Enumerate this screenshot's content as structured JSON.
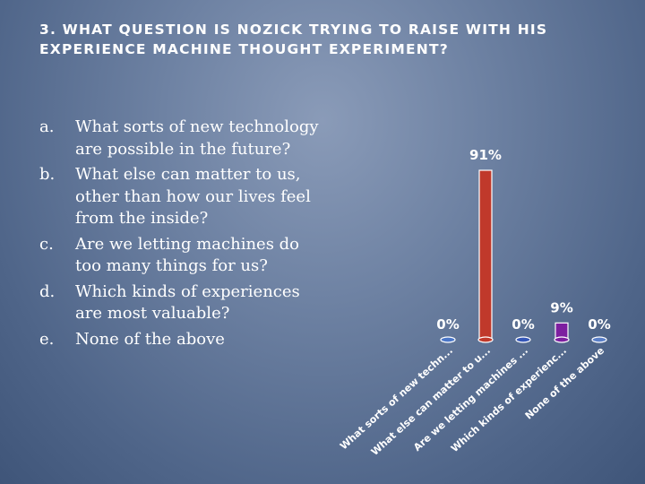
{
  "title": "3. WHAT QUESTION IS NOZICK TRYING TO RAISE WITH HIS EXPERIENCE MACHINE THOUGHT EXPERIMENT?",
  "options": [
    {
      "letter": "a.",
      "text": "What sorts of new technology are possible in the future?"
    },
    {
      "letter": "b.",
      "text": "What else can matter to us, other than how our lives feel from the inside?"
    },
    {
      "letter": "c.",
      "text": "Are we letting machines do too many things for us?"
    },
    {
      "letter": "d.",
      "text": "Which kinds of experiences are most valuable?"
    },
    {
      "letter": "e.",
      "text": "None of the above"
    }
  ],
  "chart_data": {
    "type": "bar",
    "categories": [
      "What sorts of new techn...",
      "What else can matter to u...",
      "Are we letting machines ...",
      "Which kinds of experienc...",
      "None of the above"
    ],
    "values": [
      0,
      91,
      0,
      9,
      0
    ],
    "value_labels": [
      "0%",
      "91%",
      "0%",
      "9%",
      "0%"
    ],
    "unit": "%",
    "ylim": [
      0,
      100
    ],
    "grid": false,
    "legend": "none",
    "colors": [
      "#4a76c8",
      "#c0392b",
      "#3557b8",
      "#7d1fa0",
      "#5a7fc8"
    ]
  }
}
